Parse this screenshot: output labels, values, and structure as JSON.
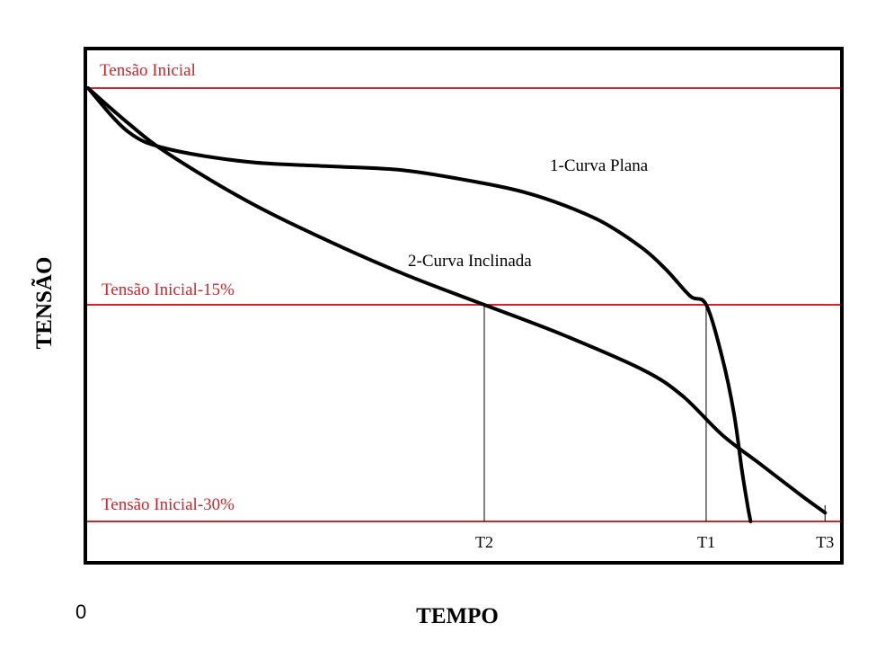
{
  "chart_data": {
    "type": "line",
    "title": "",
    "xlabel": "TEMPO",
    "ylabel": "TENSÃO",
    "origin_label": "0",
    "xlim": [
      0,
      100
    ],
    "ylim": [
      0,
      100
    ],
    "grid": false,
    "reference_lines": [
      {
        "label": "Tensão Inicial",
        "y": 100,
        "color": "#c8282e"
      },
      {
        "label": "Tensão Inicial-15%",
        "y": 50,
        "color": "#c8282e"
      },
      {
        "label": "Tensão Inicial-30%",
        "y": 0,
        "color": "#c8282e"
      }
    ],
    "x_markers": [
      {
        "label": "T2",
        "x": 50
      },
      {
        "label": "T1",
        "x": 78
      },
      {
        "label": "T3",
        "x": 93
      }
    ],
    "series": [
      {
        "name": "1-Curva Plana",
        "color": "#000000",
        "x": [
          0,
          5,
          10,
          20,
          30,
          40,
          50,
          55,
          60,
          65,
          70,
          73,
          76,
          78,
          80,
          81.5,
          82.5,
          83.2,
          83.6
        ],
        "y": [
          100,
          90,
          86,
          83,
          82,
          81,
          78,
          76,
          73,
          69,
          63,
          58,
          52,
          50,
          38,
          25,
          12,
          4,
          0
        ]
      },
      {
        "name": "2-Curva Inclinada",
        "color": "#000000",
        "x": [
          0,
          5,
          10,
          20,
          30,
          40,
          50,
          60,
          70,
          75,
          80,
          85,
          90,
          93
        ],
        "y": [
          100,
          92,
          85,
          74,
          65,
          57,
          50,
          43,
          35,
          29,
          20,
          13,
          6,
          2
        ]
      }
    ]
  }
}
